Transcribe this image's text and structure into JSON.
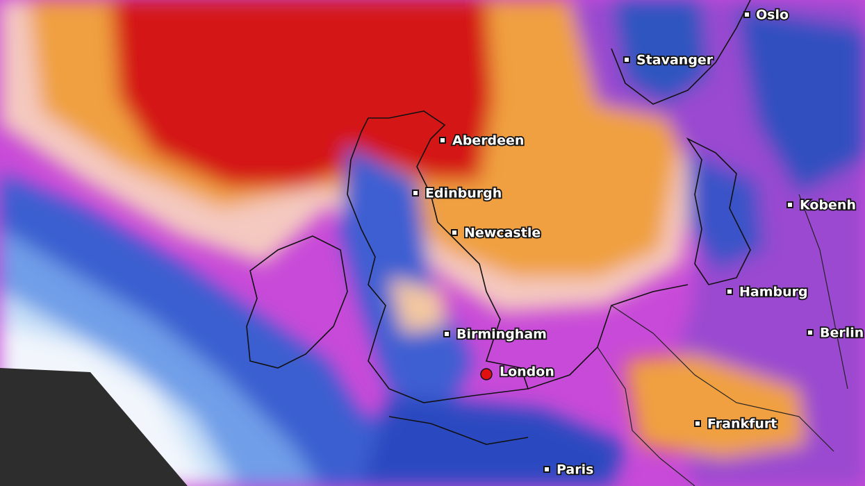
{
  "cities": [
    {
      "name": "Oslo"
    },
    {
      "name": "Stavanger"
    },
    {
      "name": "Aberdeen"
    },
    {
      "name": "Edinburgh"
    },
    {
      "name": "Newcastle"
    },
    {
      "name": "Kobenh"
    },
    {
      "name": "Hamburg"
    },
    {
      "name": "Birmingham"
    },
    {
      "name": "London"
    },
    {
      "name": "Berlin"
    },
    {
      "name": "Frankfurt"
    },
    {
      "name": "Paris"
    }
  ]
}
